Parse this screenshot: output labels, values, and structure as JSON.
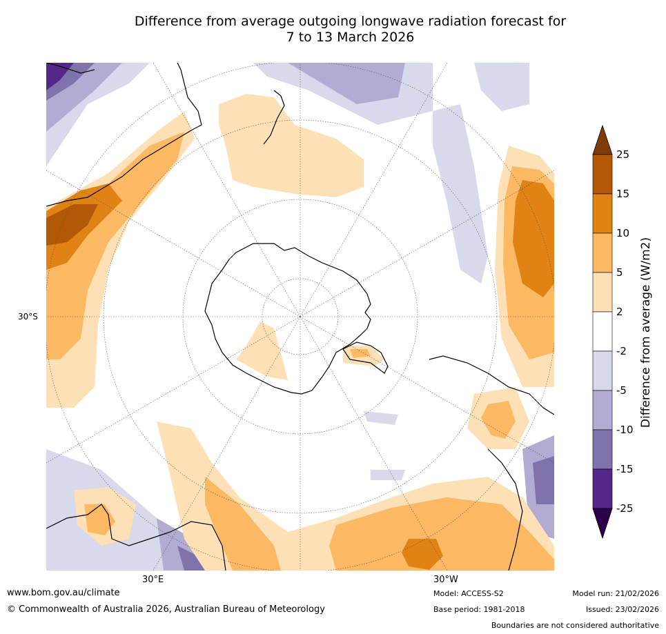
{
  "title": {
    "line1": "Difference from average outgoing longwave radiation forecast for",
    "line2": "7 to 13 March 2026"
  },
  "axis_labels": {
    "lat": "30°S",
    "lon_east": "30°E",
    "lon_west": "30°W"
  },
  "colorbar": {
    "title": "Difference from average (W/m2)",
    "ticks": [
      "25",
      "15",
      "10",
      "5",
      "2",
      "-2",
      "-5",
      "-10",
      "-15",
      "-25"
    ],
    "colors": {
      "over": "#7f3b08",
      "c15_25": "#b35806",
      "c10_15": "#e08214",
      "c5_10": "#fdb863",
      "c2_5": "#fee0b6",
      "neutral": "#ffffff",
      "m2_m5": "#d8daeb",
      "m5_m10": "#b2abd2",
      "m10_m15": "#8073ac",
      "m15_m25": "#542788",
      "under": "#2d004b"
    }
  },
  "footer": {
    "website": "www.bom.gov.au/climate",
    "copyright": "© Commonwealth of Australia 2026, Australian Bureau of Meteorology",
    "model": "Model: ACCESS-S2",
    "base_period": "Base period: 1981-2018",
    "model_run": "Model run: 21/02/2026",
    "issued": "Issued: 23/02/2026",
    "disclaimer": "Boundaries are not considered authoritative"
  }
}
